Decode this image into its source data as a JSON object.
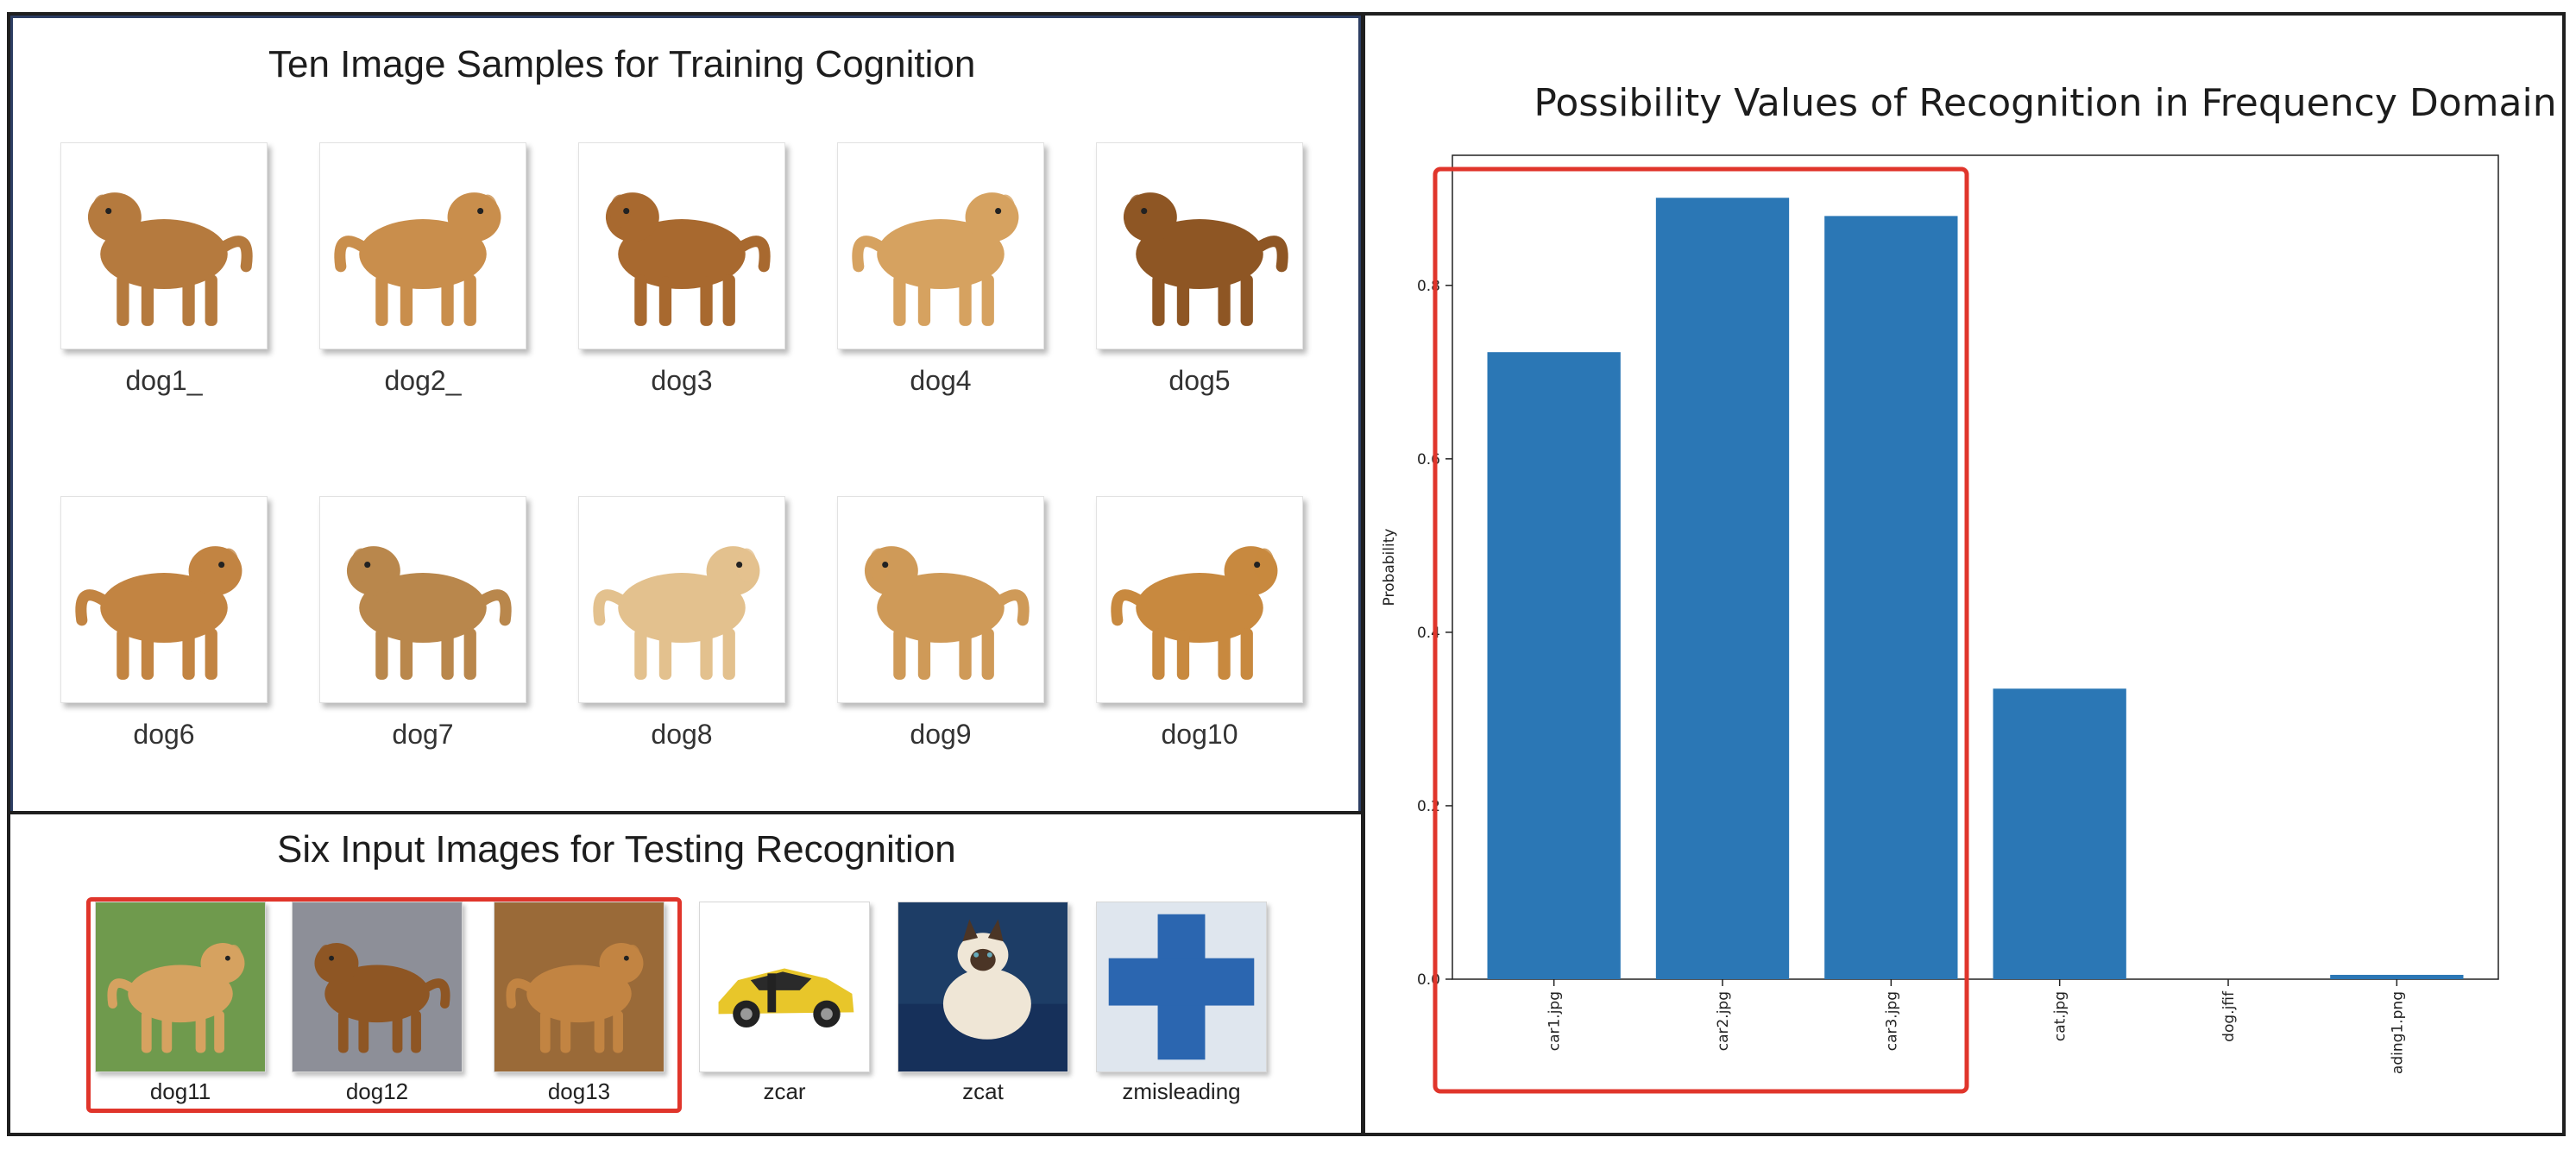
{
  "left_panel": {
    "title": "Ten Image Samples for Training Cognition",
    "training_images": [
      {
        "label": "dog1_",
        "icon": "dog-photo"
      },
      {
        "label": "dog2_",
        "icon": "dog-photo"
      },
      {
        "label": "dog3",
        "icon": "dog-photo"
      },
      {
        "label": "dog4",
        "icon": "dog-photo"
      },
      {
        "label": "dog5",
        "icon": "dog-photo"
      },
      {
        "label": "dog6",
        "icon": "dog-photo"
      },
      {
        "label": "dog7",
        "icon": "dog-photo"
      },
      {
        "label": "dog8",
        "icon": "dog-photo"
      },
      {
        "label": "dog9",
        "icon": "dog-photo"
      },
      {
        "label": "dog10",
        "icon": "dog-photo"
      }
    ]
  },
  "bottom_panel": {
    "title": "Six Input Images for Testing Recognition",
    "test_images": [
      {
        "label": "dog11",
        "icon": "dog-photo"
      },
      {
        "label": "dog12",
        "icon": "dog-photo"
      },
      {
        "label": "dog13",
        "icon": "dog-photo"
      },
      {
        "label": "zcar",
        "icon": "car-photo"
      },
      {
        "label": "zcat",
        "icon": "cat-photo"
      },
      {
        "label": "zmisleading",
        "icon": "blue-cross-image"
      }
    ],
    "highlight_color": "#e0352b"
  },
  "chart_data": {
    "type": "bar",
    "title": "Possibility Values of Recognition in Frequency Domain",
    "ylabel": "Probability",
    "xlabel": "",
    "categories": [
      "car1.jpg",
      "car2.jpg",
      "car3.jpg",
      "cat.jpg",
      "dog.jfif",
      "ading1.png"
    ],
    "values": [
      0.723,
      0.901,
      0.88,
      0.335,
      0.0,
      0.005
    ],
    "ylim": [
      0,
      0.95
    ],
    "yticks": [
      "0.0",
      "0.2",
      "0.4",
      "0.6",
      "0.8"
    ],
    "bar_color": "#2b77b5",
    "highlight_color": "#e0352b"
  }
}
